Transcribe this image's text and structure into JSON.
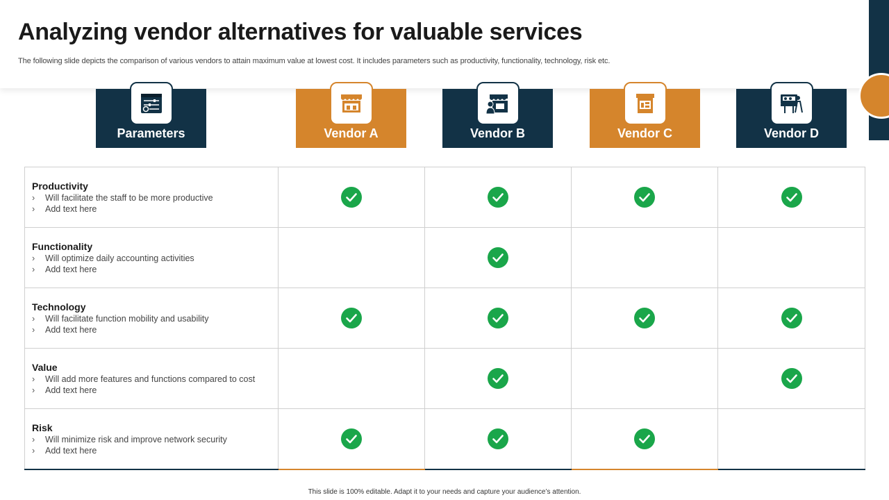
{
  "slide": {
    "title": "Analyzing vendor alternatives for valuable services",
    "subtitle": "The following slide depicts the comparison of various vendors to attain maximum value at lowest cost. It includes parameters such as productivity, functionality, technology, risk etc.",
    "footer": "This slide is 100% editable. Adapt it to your needs and capture your audience’s attention."
  },
  "colors": {
    "navy": "#123246",
    "orange": "#d5852c",
    "check_green": "#1aa64a"
  },
  "columns": [
    {
      "label": "Parameters",
      "icon": "settings-panel-icon",
      "style": "dark"
    },
    {
      "label": "Vendor A",
      "icon": "storefront-icon",
      "style": "orange"
    },
    {
      "label": "Vendor B",
      "icon": "shop-vendor-icon",
      "style": "dark"
    },
    {
      "label": "Vendor C",
      "icon": "kiosk-icon",
      "style": "orange"
    },
    {
      "label": "Vendor D",
      "icon": "market-stall-icon",
      "style": "dark"
    }
  ],
  "rows": [
    {
      "name": "Productivity",
      "bullets": [
        "Will facilitate the staff to be more productive",
        "Add text here"
      ],
      "checks": [
        true,
        true,
        true,
        true
      ]
    },
    {
      "name": "Functionality",
      "bullets": [
        "Will optimize daily accounting activities",
        "Add text here"
      ],
      "checks": [
        false,
        true,
        false,
        false
      ]
    },
    {
      "name": "Technology",
      "bullets": [
        "Will facilitate function mobility and usability",
        "Add text here"
      ],
      "checks": [
        true,
        true,
        true,
        true
      ]
    },
    {
      "name": "Value",
      "bullets": [
        "Will add more features and functions compared to cost",
        "Add text here"
      ],
      "checks": [
        false,
        true,
        false,
        true
      ]
    },
    {
      "name": "Risk",
      "bullets": [
        "Will minimize risk and improve network security",
        "Add text here"
      ],
      "checks": [
        true,
        true,
        true,
        false
      ]
    }
  ],
  "bullet_marker": "›"
}
